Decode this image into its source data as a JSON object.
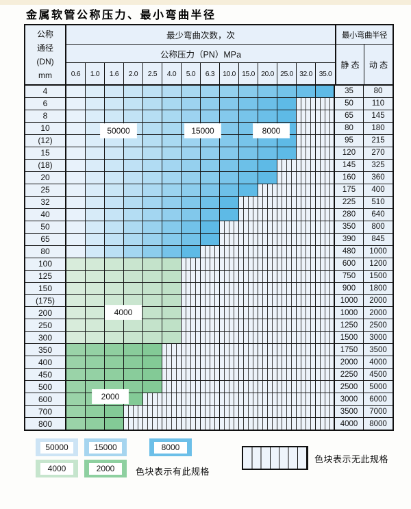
{
  "page": {
    "title": "金属软管公称压力、最小弯曲半径"
  },
  "table": {
    "header": {
      "dn_lines": [
        "公称",
        "通径",
        "(DN)",
        "mm"
      ],
      "cycles_title": "最少弯曲次数，次",
      "pressure_title": "公称压力（PN）MPa",
      "pressure_ticks": [
        "0.6",
        "1.0",
        "1.6",
        "2.0",
        "2.5",
        "4.0",
        "5.0",
        "6.3",
        "10.0",
        "15.0",
        "20.0",
        "25.0",
        "32.0",
        "35.0"
      ],
      "radius_title": "最小弯曲半径",
      "static_label": "静 态",
      "dynamic_label": "动 态"
    },
    "rows": [
      {
        "dn": "4",
        "max_pn": "35.0",
        "band": "blue",
        "static": "35",
        "dynamic": "80"
      },
      {
        "dn": "6",
        "max_pn": "25.0",
        "band": "blue",
        "static": "50",
        "dynamic": "110"
      },
      {
        "dn": "8",
        "max_pn": "25.0",
        "band": "blue",
        "static": "65",
        "dynamic": "145"
      },
      {
        "dn": "10",
        "max_pn": "25.0",
        "band": "blue",
        "static": "80",
        "dynamic": "180"
      },
      {
        "dn": "(12)",
        "max_pn": "25.0",
        "band": "blue",
        "static": "95",
        "dynamic": "215"
      },
      {
        "dn": "15",
        "max_pn": "25.0",
        "band": "blue",
        "static": "120",
        "dynamic": "270"
      },
      {
        "dn": "(18)",
        "max_pn": "20.0",
        "band": "blue",
        "static": "145",
        "dynamic": "325"
      },
      {
        "dn": "20",
        "max_pn": "20.0",
        "band": "blue",
        "static": "160",
        "dynamic": "360"
      },
      {
        "dn": "25",
        "max_pn": "15.0",
        "band": "blue",
        "static": "175",
        "dynamic": "400"
      },
      {
        "dn": "32",
        "max_pn": "10.0",
        "band": "blue",
        "static": "225",
        "dynamic": "510"
      },
      {
        "dn": "40",
        "max_pn": "10.0",
        "band": "blue",
        "static": "280",
        "dynamic": "640"
      },
      {
        "dn": "50",
        "max_pn": "6.3",
        "band": "blue",
        "static": "350",
        "dynamic": "800"
      },
      {
        "dn": "65",
        "max_pn": "6.3",
        "band": "blue",
        "static": "390",
        "dynamic": "845"
      },
      {
        "dn": "80",
        "max_pn": "5.0",
        "band": "blue",
        "static": "480",
        "dynamic": "1000"
      },
      {
        "dn": "100",
        "max_pn": "4.0",
        "band": "green_4000",
        "static": "600",
        "dynamic": "1200"
      },
      {
        "dn": "125",
        "max_pn": "4.0",
        "band": "green_4000",
        "static": "750",
        "dynamic": "1500"
      },
      {
        "dn": "150",
        "max_pn": "4.0",
        "band": "green_4000",
        "static": "900",
        "dynamic": "1800"
      },
      {
        "dn": "(175)",
        "max_pn": "4.0",
        "band": "green_4000",
        "static": "1000",
        "dynamic": "2000"
      },
      {
        "dn": "200",
        "max_pn": "4.0",
        "band": "green_4000",
        "static": "1000",
        "dynamic": "2000"
      },
      {
        "dn": "250",
        "max_pn": "4.0",
        "band": "green_4000",
        "static": "1250",
        "dynamic": "2500"
      },
      {
        "dn": "300",
        "max_pn": "4.0",
        "band": "green_4000",
        "static": "1500",
        "dynamic": "3000"
      },
      {
        "dn": "350",
        "max_pn": "2.5",
        "band": "green_2000",
        "static": "1750",
        "dynamic": "3500"
      },
      {
        "dn": "400",
        "max_pn": "2.5",
        "band": "green_2000",
        "static": "2000",
        "dynamic": "4000"
      },
      {
        "dn": "450",
        "max_pn": "2.5",
        "band": "green_2000",
        "static": "2250",
        "dynamic": "4500"
      },
      {
        "dn": "500",
        "max_pn": "2.5",
        "band": "green_2000",
        "static": "2500",
        "dynamic": "5000"
      },
      {
        "dn": "600",
        "max_pn": "2.0",
        "band": "green_2000",
        "static": "3000",
        "dynamic": "6000"
      },
      {
        "dn": "700",
        "max_pn": "1.6",
        "band": "green_2000",
        "static": "3500",
        "dynamic": "7000"
      },
      {
        "dn": "800",
        "max_pn": "1.6",
        "band": "green_2000",
        "static": "4000",
        "dynamic": "8000"
      }
    ]
  },
  "overlays": {
    "labels": [
      "50000",
      "15000",
      "8000",
      "4000",
      "2000"
    ]
  },
  "legend": {
    "items": [
      {
        "label": "50000",
        "color": "#cde4f5"
      },
      {
        "label": "15000",
        "color": "#a6d5ef"
      },
      {
        "label": "8000",
        "color": "#6cbfe8"
      },
      {
        "label": "4000",
        "color": "#c6e5cd"
      },
      {
        "label": "2000",
        "color": "#8ed0a0"
      }
    ],
    "has_spec_text": "色块表示有此规格",
    "no_spec_text": "色块表示无此规格"
  },
  "colors": {
    "grid_line": "#161616",
    "header_bg": "#e7f0fa",
    "label_bg": "#eaf2fa",
    "hatch_bg": "#edf3fa",
    "hatch_line": "#3d3d3d",
    "top_strip": "#f6eeda",
    "bands": {
      "blue": [
        "#e8f2fb",
        "#5ebae6"
      ],
      "green_4000": [
        "#d8ecdb",
        "#bfe1c7"
      ],
      "green_2000": [
        "#9ad3a8",
        "#83ca96"
      ]
    }
  },
  "chart_data": {
    "type": "table",
    "title": "金属软管公称压力、最小弯曲半径",
    "columns": [
      "公称通径(DN) mm",
      "最高有规格公称压力(PN) MPa",
      "最小弯曲半径 静态",
      "最小弯曲半径 动态"
    ],
    "rows": [
      [
        "4",
        "35.0",
        "35",
        "80"
      ],
      [
        "6",
        "25.0",
        "50",
        "110"
      ],
      [
        "8",
        "25.0",
        "65",
        "145"
      ],
      [
        "10",
        "25.0",
        "80",
        "180"
      ],
      [
        "(12)",
        "25.0",
        "95",
        "215"
      ],
      [
        "15",
        "25.0",
        "120",
        "270"
      ],
      [
        "(18)",
        "20.0",
        "145",
        "325"
      ],
      [
        "20",
        "20.0",
        "160",
        "360"
      ],
      [
        "25",
        "15.0",
        "175",
        "400"
      ],
      [
        "32",
        "10.0",
        "225",
        "510"
      ],
      [
        "40",
        "10.0",
        "280",
        "640"
      ],
      [
        "50",
        "6.3",
        "350",
        "800"
      ],
      [
        "65",
        "6.3",
        "390",
        "845"
      ],
      [
        "80",
        "5.0",
        "480",
        "1000"
      ],
      [
        "100",
        "4.0",
        "600",
        "1200"
      ],
      [
        "125",
        "4.0",
        "750",
        "1500"
      ],
      [
        "150",
        "4.0",
        "900",
        "1800"
      ],
      [
        "(175)",
        "4.0",
        "1000",
        "2000"
      ],
      [
        "200",
        "4.0",
        "1000",
        "2000"
      ],
      [
        "250",
        "4.0",
        "1250",
        "2500"
      ],
      [
        "300",
        "4.0",
        "1500",
        "3000"
      ],
      [
        "350",
        "2.5",
        "1750",
        "3500"
      ],
      [
        "400",
        "2.5",
        "2000",
        "4000"
      ],
      [
        "450",
        "2.5",
        "2250",
        "4500"
      ],
      [
        "500",
        "2.5",
        "2500",
        "5000"
      ],
      [
        "600",
        "2.0",
        "3000",
        "6000"
      ],
      [
        "700",
        "1.6",
        "3500",
        "7000"
      ],
      [
        "800",
        "1.6",
        "4000",
        "8000"
      ]
    ],
    "bend_cycle_zones": [
      "50000",
      "15000",
      "8000",
      "4000",
      "2000"
    ],
    "notes": [
      "色块表示有此规格",
      "色块表示无此规格"
    ]
  }
}
